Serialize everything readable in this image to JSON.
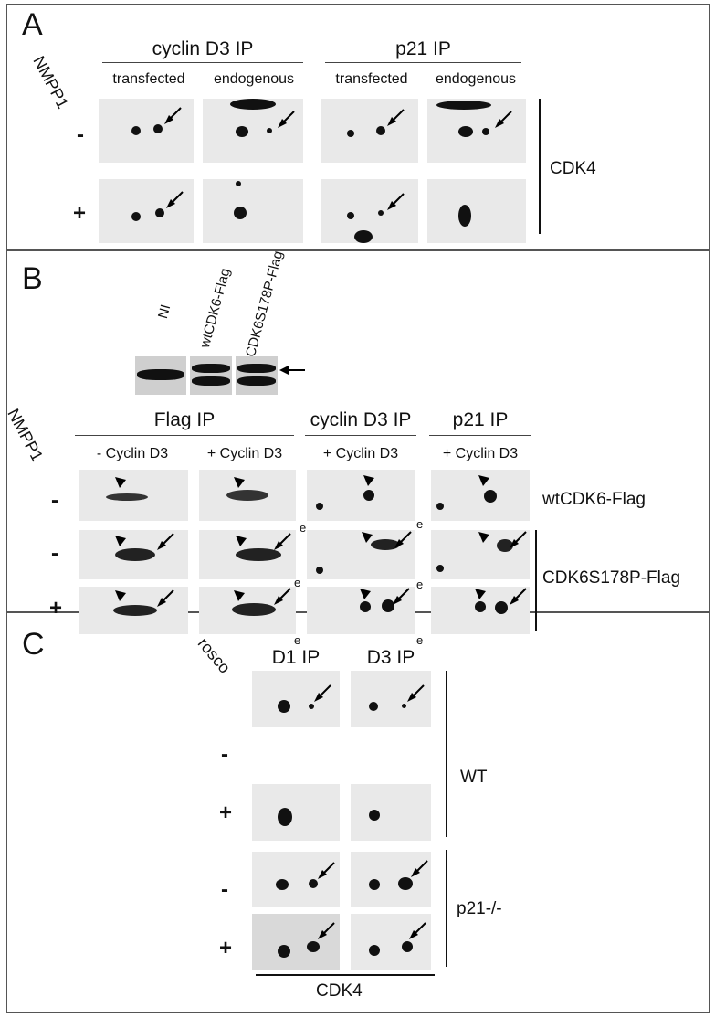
{
  "panelA": {
    "letter": "A",
    "treatment": "NMPP1",
    "groups": [
      "cyclin D3 IP",
      "p21 IP"
    ],
    "columns": [
      "transfected",
      "endogenous",
      "transfected",
      "endogenous"
    ],
    "rows": [
      "-",
      "+"
    ],
    "side_label": "CDK4"
  },
  "panelB": {
    "letter": "B",
    "western_lanes": [
      "NI",
      "wtCDK6-Flag",
      "CDK6S178P-Flag"
    ],
    "treatment": "NMPP1",
    "groups": [
      "Flag IP",
      "cyclin D3 IP",
      "p21 IP"
    ],
    "columns": [
      "- Cyclin D3",
      "+ Cyclin D3",
      "+ Cyclin D3",
      "+ Cyclin D3"
    ],
    "rows": [
      "-",
      "-",
      "+"
    ],
    "side_labels": [
      "wtCDK6-Flag",
      "CDK6S178P-Flag"
    ],
    "e_label": "e"
  },
  "panelC": {
    "letter": "C",
    "treatment": "rosco",
    "groups": [
      "D1 IP",
      "D3 IP"
    ],
    "rows": [
      "-",
      "+",
      "-",
      "+"
    ],
    "side_labels": [
      "WT",
      "p21-/-"
    ],
    "bottom_label": "CDK4"
  }
}
